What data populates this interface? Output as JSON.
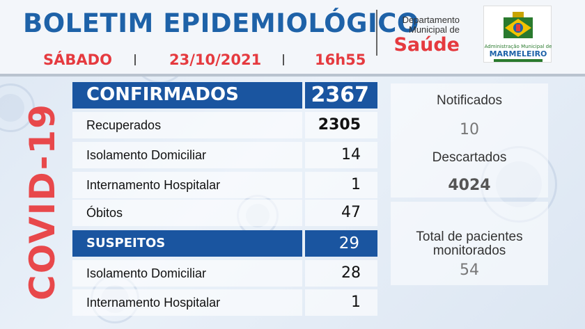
{
  "header": {
    "title": "BOLETIM EPIDEMIOLÓGICO",
    "day": "SÁBADO",
    "date": "23/10/2021",
    "time": "16h55"
  },
  "department": {
    "line1": "Departamento",
    "line2": "Municipal de",
    "name": "Saúde"
  },
  "logo": {
    "text_top": "Administração Municipal de",
    "text_main": "MARMELEIRO"
  },
  "side_label": "COVID-19",
  "confirmed_table": {
    "header_label": "CONFIRMADOS",
    "header_value": "2367",
    "rows": [
      {
        "label": "Recuperados",
        "value": "2305"
      },
      {
        "label": "Isolamento Domiciliar",
        "value": "14"
      },
      {
        "label": "Internamento Hospitalar",
        "value": "1"
      },
      {
        "label": "Óbitos",
        "value": "47"
      }
    ]
  },
  "suspect_table": {
    "header_label": "SUSPEITOS",
    "header_value": "29",
    "rows": [
      {
        "label": "Isolamento Domiciliar",
        "value": "28"
      },
      {
        "label": "Internamento Hospitalar",
        "value": "1"
      }
    ]
  },
  "side_panel": {
    "notified_label": "Notificados",
    "notified_value": "10",
    "discarded_label": "Descartados",
    "discarded_value": "4024",
    "monitored_label_1": "Total de pacientes",
    "monitored_label_2": "monitorados",
    "monitored_value": "54"
  },
  "colors": {
    "blue": "#1a55a0",
    "red": "#e53a3f",
    "green": "#2a7a2e"
  }
}
